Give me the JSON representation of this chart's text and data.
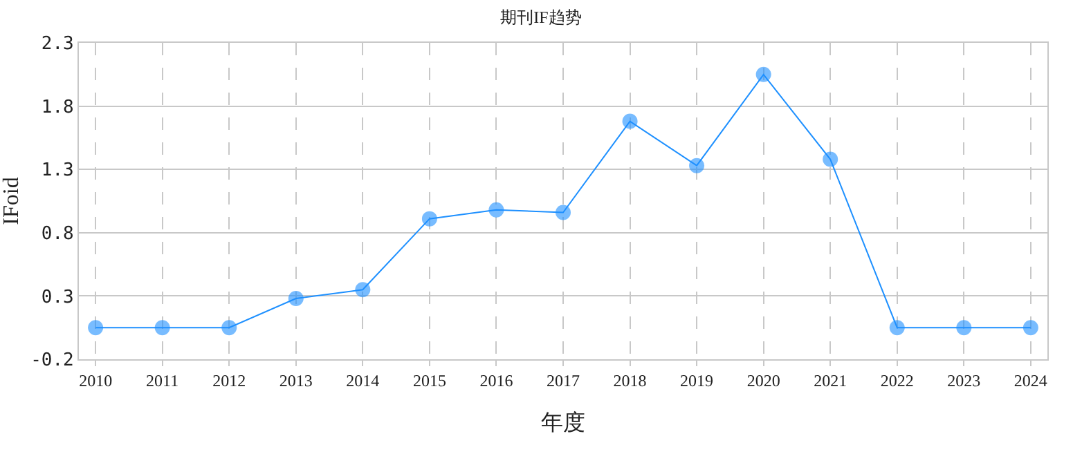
{
  "chart_data": {
    "type": "line",
    "title": "期刊IF趋势",
    "xlabel": "年度",
    "ylabel": "IFoid",
    "categories": [
      "2010",
      "2011",
      "2012",
      "2013",
      "2014",
      "2015",
      "2016",
      "2017",
      "2018",
      "2019",
      "2020",
      "2021",
      "2022",
      "2023",
      "2024"
    ],
    "series": [
      {
        "color": "#1e90ff",
        "values": [
          0.05,
          0.05,
          0.05,
          0.28,
          0.35,
          0.91,
          0.98,
          0.96,
          1.68,
          1.33,
          2.05,
          1.38,
          0.05,
          0.05,
          0.05
        ]
      }
    ],
    "ylim": [
      -0.2,
      2.3
    ],
    "yticks": [
      -0.2,
      0.3,
      0.8,
      1.3,
      1.8,
      2.3
    ],
    "grid": true,
    "marker": "circle",
    "line_style": "solid"
  }
}
